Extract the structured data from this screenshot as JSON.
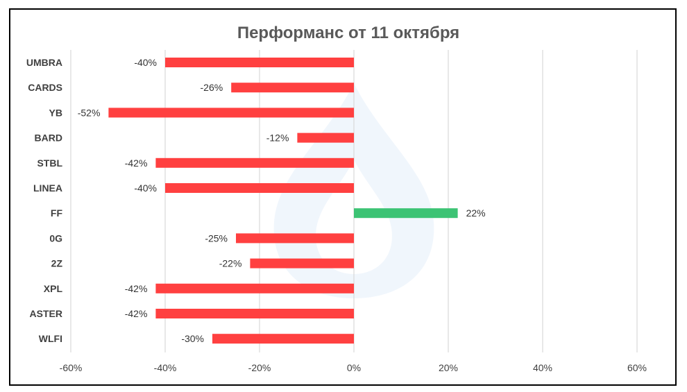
{
  "chart_data": {
    "type": "bar",
    "orientation": "horizontal",
    "title": "Перформанс от 11 октября",
    "categories": [
      "UMBRA",
      "CARDS",
      "YB",
      "BARD",
      "STBL",
      "LINEA",
      "FF",
      "0G",
      "2Z",
      "XPL",
      "ASTER",
      "WLFI"
    ],
    "values": [
      -40,
      -26,
      -52,
      -12,
      -42,
      -40,
      22,
      -25,
      -22,
      -42,
      -42,
      -30
    ],
    "data_labels": [
      "-40%",
      "-26%",
      "-52%",
      "-12%",
      "-42%",
      "-40%",
      "22%",
      "-25%",
      "-22%",
      "-42%",
      "-42%",
      "-30%"
    ],
    "xlim": [
      -60,
      60
    ],
    "x_ticks": [
      -60,
      -40,
      -20,
      0,
      20,
      40,
      60
    ],
    "x_tick_labels": [
      "-60%",
      "-40%",
      "-20%",
      "0%",
      "20%",
      "40%",
      "60%"
    ],
    "grid": "vertical",
    "legend": "none",
    "colors": {
      "negative": "#ff4040",
      "positive": "#3cc374",
      "grid": "#d9d9d9",
      "title": "#595959"
    }
  }
}
